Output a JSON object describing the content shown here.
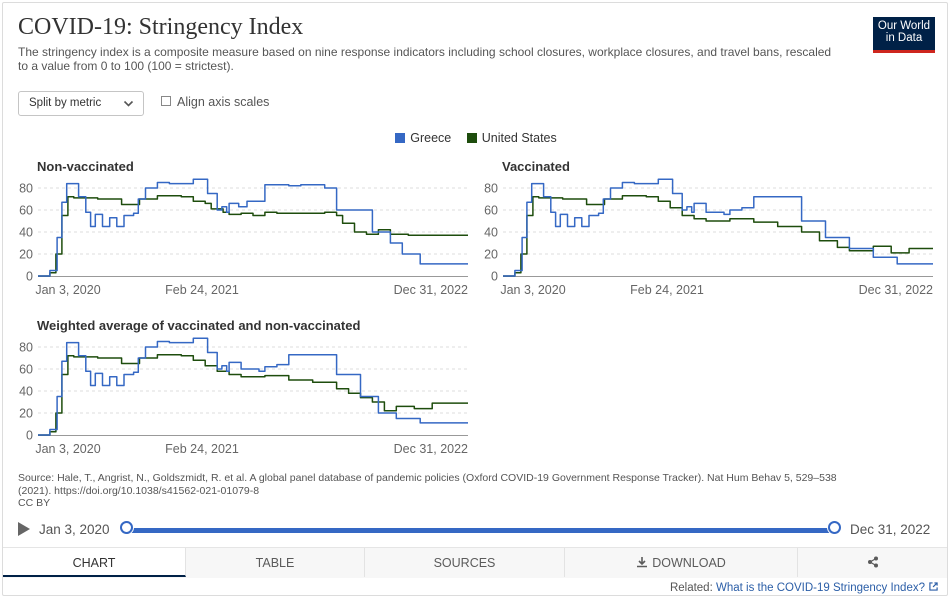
{
  "header": {
    "title": "COVID-19: Stringency Index",
    "subtitle": "The stringency index is a composite measure based on nine response indicators including school closures, workplace closures, and travel bans, rescaled to a value from 0 to 100 (100 = strictest).",
    "logo_line1": "Our World",
    "logo_line2": "in Data",
    "logo_color": "#002147"
  },
  "controls": {
    "dropdown_label": "Split by metric",
    "chevron": "chevron-down-icon",
    "checkbox_label": "Align axis scales"
  },
  "legend": [
    {
      "name": "Greece",
      "color": "#3568c4"
    },
    {
      "name": "United States",
      "color": "#1e4d0d"
    }
  ],
  "chart_data": [
    {
      "type": "line",
      "title": "Non-vaccinated",
      "x_tick_labels": [
        "Jan 3, 2020",
        "Feb 24, 2021",
        "Dec 31, 2022"
      ],
      "y_ticks": [
        0,
        20,
        40,
        60,
        80
      ],
      "ylim": [
        0,
        90
      ],
      "xlim": [
        "2020-01-03",
        "2022-12-31"
      ],
      "x_unit": "months since Jan 3, 2020",
      "series": [
        {
          "name": "Greece",
          "color": "#3568c4",
          "x": [
            0,
            1.0,
            1.6,
            2.0,
            2.4,
            2.6,
            3.4,
            4.0,
            4.4,
            4.8,
            5.4,
            6.0,
            6.6,
            7.2,
            8.0,
            8.4,
            9.0,
            10.0,
            11.0,
            13.0,
            14.2,
            15.0,
            15.4,
            15.8,
            16.0,
            16.8,
            17.5,
            19.0,
            21.0,
            22.0,
            24.0,
            25.0,
            28.0,
            29.5,
            30.5,
            32.0,
            36.0
          ],
          "values": [
            0,
            5,
            35,
            67,
            84,
            84,
            72,
            58,
            45,
            56,
            45,
            53,
            45,
            55,
            57,
            70,
            80,
            85,
            84,
            88,
            75,
            60,
            63,
            58,
            66,
            63,
            68,
            83,
            82,
            83,
            80,
            60,
            40,
            30,
            20,
            11,
            11
          ]
        },
        {
          "name": "United States",
          "color": "#1e4d0d",
          "x": [
            0,
            1.0,
            1.5,
            2.0,
            2.5,
            3.0,
            5.0,
            7.0,
            8.5,
            10.0,
            12.0,
            13.0,
            14.0,
            14.5,
            15.5,
            16.0,
            17.0,
            18.0,
            19.0,
            20.0,
            22.0,
            24.0,
            25.0,
            25.5,
            26.5,
            27.5,
            28.5,
            29.5,
            31.0,
            36.0
          ],
          "values": [
            0,
            3,
            20,
            55,
            72,
            71,
            70,
            65,
            70,
            73,
            72,
            68,
            66,
            61,
            58,
            56,
            57,
            55,
            58,
            57,
            57,
            58,
            55,
            48,
            40,
            38,
            42,
            38,
            37,
            37
          ]
        }
      ]
    },
    {
      "type": "line",
      "title": "Vaccinated",
      "x_tick_labels": [
        "Jan 3, 2020",
        "Feb 24, 2021",
        "Dec 31, 2022"
      ],
      "y_ticks": [
        0,
        20,
        40,
        60,
        80
      ],
      "ylim": [
        0,
        90
      ],
      "xlim": [
        "2020-01-03",
        "2022-12-31"
      ],
      "x_unit": "months since Jan 3, 2020",
      "series": [
        {
          "name": "Greece",
          "color": "#3568c4",
          "x": [
            0,
            1.0,
            1.6,
            2.0,
            2.4,
            2.6,
            3.4,
            4.0,
            4.4,
            4.8,
            5.4,
            6.0,
            6.6,
            7.2,
            8.0,
            8.4,
            9.0,
            10.0,
            11.0,
            13.0,
            14.2,
            15.0,
            15.4,
            15.8,
            16.0,
            17.0,
            18.5,
            19.0,
            20.0,
            21.0,
            24.0,
            25.0,
            27.0,
            29.0,
            31.0,
            33.0,
            36.0
          ],
          "values": [
            0,
            5,
            35,
            67,
            84,
            84,
            72,
            58,
            45,
            56,
            45,
            53,
            45,
            55,
            57,
            70,
            80,
            85,
            84,
            88,
            75,
            60,
            63,
            58,
            66,
            58,
            56,
            60,
            62,
            72,
            72,
            50,
            35,
            25,
            17,
            11,
            11
          ]
        },
        {
          "name": "United States",
          "color": "#1e4d0d",
          "x": [
            0,
            1.0,
            1.5,
            2.0,
            2.5,
            3.0,
            5.0,
            7.0,
            8.5,
            10.0,
            12.0,
            13.0,
            14.0,
            15.0,
            16.0,
            17.0,
            19.0,
            21.0,
            23.0,
            25.0,
            26.5,
            28.0,
            29.0,
            31.0,
            32.5,
            34.0,
            36.0
          ],
          "values": [
            0,
            3,
            20,
            55,
            72,
            71,
            70,
            65,
            70,
            73,
            72,
            68,
            62,
            55,
            52,
            50,
            52,
            49,
            45,
            40,
            32,
            26,
            23,
            27,
            21,
            25,
            25
          ]
        }
      ]
    },
    {
      "type": "line",
      "title": "Weighted average of vaccinated and non-vaccinated",
      "x_tick_labels": [
        "Jan 3, 2020",
        "Feb 24, 2021",
        "Dec 31, 2022"
      ],
      "y_ticks": [
        0,
        20,
        40,
        60,
        80
      ],
      "ylim": [
        0,
        90
      ],
      "xlim": [
        "2020-01-03",
        "2022-12-31"
      ],
      "x_unit": "months since Jan 3, 2020",
      "series": [
        {
          "name": "Greece",
          "color": "#3568c4",
          "x": [
            0,
            1.0,
            1.6,
            2.0,
            2.4,
            2.6,
            3.4,
            4.0,
            4.4,
            4.8,
            5.4,
            6.0,
            6.6,
            7.2,
            8.0,
            8.4,
            9.0,
            10.0,
            11.0,
            13.0,
            14.2,
            15.0,
            15.4,
            15.8,
            16.0,
            17.0,
            18.5,
            19.0,
            20.0,
            21.0,
            24.0,
            25.0,
            27.0,
            28.5,
            30.0,
            32.0,
            36.0
          ],
          "values": [
            0,
            5,
            35,
            67,
            84,
            84,
            72,
            58,
            45,
            56,
            45,
            53,
            45,
            55,
            57,
            70,
            80,
            85,
            84,
            88,
            75,
            60,
            63,
            58,
            66,
            60,
            58,
            62,
            64,
            73,
            73,
            55,
            35,
            20,
            15,
            11,
            11
          ]
        },
        {
          "name": "United States",
          "color": "#1e4d0d",
          "x": [
            0,
            1.0,
            1.5,
            2.0,
            2.5,
            3.0,
            5.0,
            7.0,
            8.5,
            10.0,
            12.0,
            13.0,
            14.0,
            15.0,
            16.0,
            17.0,
            19.0,
            21.0,
            23.0,
            25.0,
            26.0,
            27.0,
            28.0,
            29.0,
            30.0,
            31.5,
            33.0,
            36.0
          ],
          "values": [
            0,
            3,
            20,
            55,
            72,
            71,
            70,
            65,
            70,
            73,
            72,
            68,
            63,
            58,
            55,
            53,
            54,
            50,
            48,
            42,
            38,
            34,
            30,
            22,
            26,
            24,
            29,
            29
          ]
        }
      ]
    }
  ],
  "source": {
    "line1": "Source: Hale, T., Angrist, N., Goldszmidt, R. et al. A global panel database of pandemic policies (Oxford COVID-19 Government Response Tracker). Nat Hum Behav 5, 529–538",
    "line2": "(2021). https://doi.org/10.1038/s41562-021-01079-8",
    "license": "CC BY"
  },
  "timeline": {
    "play_icon": "play-icon",
    "start_label": "Jan 3, 2020",
    "end_label": "Dec 31, 2022",
    "start_fraction": 0,
    "end_fraction": 1,
    "track_color": "#3568c4"
  },
  "tabs": [
    {
      "id": "chart",
      "label": "CHART",
      "active": true
    },
    {
      "id": "table",
      "label": "TABLE",
      "active": false
    },
    {
      "id": "sources",
      "label": "SOURCES",
      "active": false
    },
    {
      "id": "download",
      "label": "DOWNLOAD",
      "icon": "download-icon",
      "active": false
    },
    {
      "id": "share",
      "label": "",
      "icon": "share-icon",
      "active": false
    }
  ],
  "related": {
    "prefix": "Related:",
    "link_text": "What is the COVID-19 Stringency Index?",
    "icon": "external-link-icon"
  }
}
